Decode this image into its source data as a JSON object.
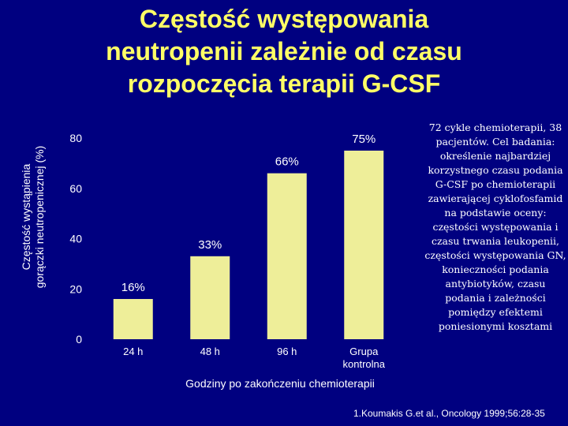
{
  "title_lines": [
    "Częstość występowania",
    "neutropenii zależnie od czasu",
    "rozpoczęcia terapii G-CSF"
  ],
  "side_text": "72 cykle chemioterapii, 38 pacjentów. Cel badania: określenie najbardziej korzystnego czasu podania G-CSF po chemioterapii zawierającej cyklofosfamid na podstawie oceny: częstości występowania i czasu trwania leukopenii, częstości występowania GN, konieczności podania antybiotyków, czasu podania i zależności pomiędzy efektemi poniesionymi kosztami",
  "citation": "1.Koumakis G.et al., Oncology 1999;56:28-35",
  "colors": {
    "background": "#000080",
    "title": "#ffff66",
    "bar": "#eeee99",
    "text": "#ffffff"
  },
  "chart_data": {
    "type": "bar",
    "categories": [
      "24 h",
      "48 h",
      "96 h",
      "Grupa kontrolna"
    ],
    "values": [
      16,
      33,
      66,
      75
    ],
    "data_labels": [
      "16%",
      "33%",
      "66%",
      "75%"
    ],
    "ylabel_lines": [
      "Częstość wystąpienia",
      "gorączki neutropenicznej (%)"
    ],
    "xlabel": "Godziny po zakończeniu chemioterapii",
    "yticks": [
      0,
      20,
      40,
      60,
      80
    ],
    "ylim": [
      0,
      80
    ],
    "grid": false,
    "legend": "none"
  }
}
